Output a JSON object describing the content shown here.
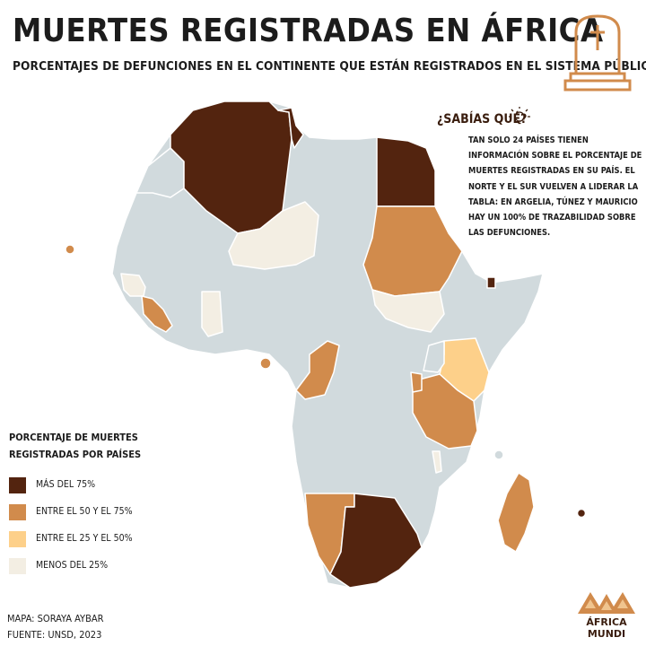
{
  "title": "MUERTES REGISTRADAS EN ÁFRICA",
  "subtitle": "PORCENTAJES DE DEFUNCIONES EN EL CONTINENTE QUE ESTÁN REGISTRADOS EN EL SISTEMA PÚBLICO",
  "did_you_know": {
    "title": "¿SABÍAS QUÉ?",
    "text": "TAN SOLO 24 PAÍSES TIENEN INFORMACIÓN SOBRE EL PORCENTAJE DE MUERTES REGISTRADAS EN SU PAÍS. EL NORTE Y EL SUR VUELVEN A LIDERAR LA TABLA: EN ARGELIA, TÚNEZ Y MAURICIO HAY UN 100% DE TRAZABILIDAD SOBRE LAS DEFUNCIONES.",
    "icon": "lightbulb-icon"
  },
  "legend": {
    "title": "PORCENTAJE DE MUERTES REGISTRADAS POR PAÍSES",
    "items": [
      {
        "label": "MÁS DEL 75%",
        "color": "#53240f"
      },
      {
        "label": "ENTRE EL 50 Y EL 75%",
        "color": "#d18b4c"
      },
      {
        "label": "ENTRE EL 25 Y EL 50%",
        "color": "#fdd08a"
      },
      {
        "label": "MENOS DEL 25%",
        "color": "#f3eee3"
      }
    ]
  },
  "colors": {
    "no_data": "#d1dadd",
    "border": "#ffffff"
  },
  "credits": {
    "map": "MAPA: SORAYA AYBAR",
    "source": "FUENTE: UNSD, 2023"
  },
  "logo": {
    "line1": "ÁFRICA",
    "line2": "MUNDI",
    "color": "#d18b4c"
  },
  "header_icon": "tombstone-icon"
}
